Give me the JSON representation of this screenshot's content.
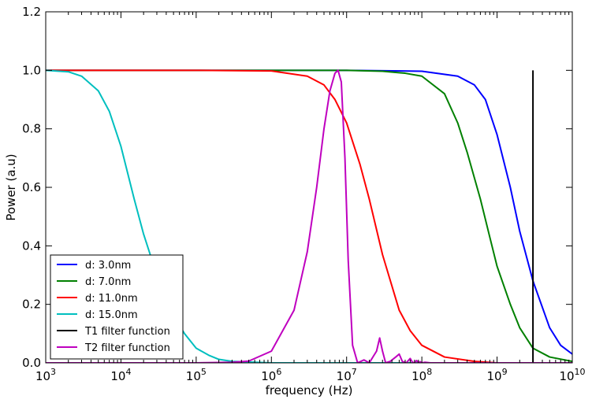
{
  "chart_data": {
    "type": "line",
    "title": "",
    "xlabel": "frequency (Hz)",
    "ylabel": "Power (a.u)",
    "xscale": "log",
    "xlim": [
      1000,
      10000000000
    ],
    "ylim": [
      0.0,
      1.2
    ],
    "grid": false,
    "legend_position": "lower-left",
    "xticks": [
      {
        "value": 1000,
        "base": "10",
        "exp": "3"
      },
      {
        "value": 10000,
        "base": "10",
        "exp": "4"
      },
      {
        "value": 100000,
        "base": "10",
        "exp": "5"
      },
      {
        "value": 1000000,
        "base": "10",
        "exp": "6"
      },
      {
        "value": 10000000,
        "base": "10",
        "exp": "7"
      },
      {
        "value": 100000000,
        "base": "10",
        "exp": "8"
      },
      {
        "value": 1000000000,
        "base": "10",
        "exp": "9"
      },
      {
        "value": 10000000000,
        "base": "10",
        "exp": "10"
      }
    ],
    "yticks": [
      {
        "value": 0.0,
        "label": "0.0"
      },
      {
        "value": 0.2,
        "label": "0.2"
      },
      {
        "value": 0.4,
        "label": "0.4"
      },
      {
        "value": 0.6,
        "label": "0.6"
      },
      {
        "value": 0.8,
        "label": "0.8"
      },
      {
        "value": 1.0,
        "label": "1.0"
      },
      {
        "value": 1.2,
        "label": "1.2"
      }
    ],
    "series": [
      {
        "name": "d: 3.0nm",
        "color": "#0000ff",
        "x": [
          1000,
          10000000,
          100000000,
          300000000,
          500000000,
          700000000,
          1000000000,
          1500000000,
          2000000000,
          3000000000,
          5000000000,
          7000000000,
          10000000000
        ],
        "y": [
          1.0,
          1.0,
          0.997,
          0.98,
          0.95,
          0.9,
          0.78,
          0.6,
          0.45,
          0.28,
          0.12,
          0.06,
          0.03
        ]
      },
      {
        "name": "d: 7.0nm",
        "color": "#008000",
        "x": [
          1000,
          10000000,
          30000000,
          60000000,
          100000000,
          200000000,
          300000000,
          400000000,
          600000000,
          800000000,
          1000000000,
          1500000000,
          2000000000,
          3000000000,
          5000000000,
          10000000000
        ],
        "y": [
          1.0,
          1.0,
          0.997,
          0.99,
          0.98,
          0.92,
          0.82,
          0.72,
          0.56,
          0.43,
          0.33,
          0.2,
          0.12,
          0.05,
          0.02,
          0.005
        ]
      },
      {
        "name": "d: 11.0nm",
        "color": "#ff0000",
        "x": [
          1000,
          100000,
          1000000,
          3000000,
          5000000,
          7000000,
          10000000,
          15000000,
          20000000,
          30000000,
          50000000,
          70000000,
          100000000,
          200000000,
          500000000,
          1000000000,
          10000000000
        ],
        "y": [
          1.0,
          1.0,
          0.998,
          0.98,
          0.95,
          0.9,
          0.82,
          0.68,
          0.56,
          0.37,
          0.18,
          0.11,
          0.06,
          0.02,
          0.005,
          0.0,
          0.0
        ]
      },
      {
        "name": "d: 15.0nm",
        "color": "#00bfbf",
        "x": [
          1000,
          2000,
          3000,
          5000,
          7000,
          10000,
          15000,
          20000,
          30000,
          50000,
          70000,
          100000,
          150000,
          200000,
          300000,
          1000000,
          10000000000
        ],
        "y": [
          1.0,
          0.995,
          0.98,
          0.93,
          0.86,
          0.74,
          0.56,
          0.44,
          0.3,
          0.16,
          0.1,
          0.05,
          0.025,
          0.012,
          0.005,
          0.0,
          0.0
        ]
      },
      {
        "name": "T1 filter function",
        "color": "#000000",
        "x": [
          3000000000,
          3000000000
        ],
        "y": [
          0.0,
          1.0
        ]
      },
      {
        "name": "T2 filter function",
        "color": "#bf00bf",
        "x": [
          1000,
          100000,
          300000,
          500000,
          1000000,
          2000000,
          3000000,
          4000000,
          5000000,
          6000000,
          7000000,
          7700000,
          8500000,
          9500000,
          10500000,
          12000000,
          14000000,
          17000000,
          20000000,
          25000000,
          27500000,
          30000000,
          33000000,
          38000000,
          45000000,
          50000000,
          55000000,
          62000000,
          70000000,
          75000000,
          80000000,
          85000000,
          90000000,
          95000000,
          100000000,
          110000000,
          130000000,
          10000000000
        ],
        "y": [
          0.0,
          0.0,
          0.002,
          0.006,
          0.04,
          0.18,
          0.38,
          0.6,
          0.8,
          0.93,
          0.99,
          1.0,
          0.96,
          0.7,
          0.35,
          0.06,
          0.0,
          0.01,
          0.0,
          0.04,
          0.085,
          0.04,
          0.0,
          0.005,
          0.02,
          0.03,
          0.005,
          0.0,
          0.015,
          0.002,
          0.0,
          0.008,
          0.0,
          0.004,
          0.0,
          0.002,
          0.0,
          0.0
        ]
      }
    ]
  }
}
